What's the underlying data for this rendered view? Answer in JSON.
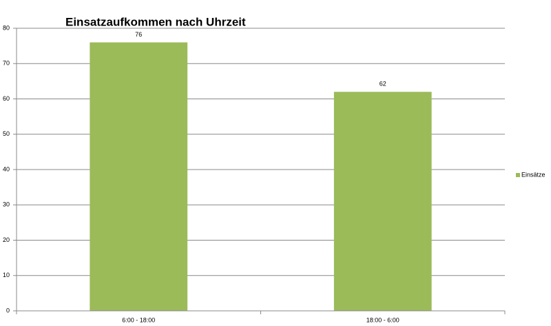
{
  "chart_data": {
    "type": "bar",
    "title": "Einsatzaufkommen nach Uhrzeit",
    "categories": [
      "6:00 - 18:00",
      "18:00 - 6:00"
    ],
    "series": [
      {
        "name": "Einsätze",
        "color": "#9bbb59",
        "values": [
          76,
          62
        ]
      }
    ],
    "ylim": [
      0,
      80
    ],
    "yticks": [
      0,
      10,
      20,
      30,
      40,
      50,
      60,
      70,
      80
    ],
    "grid": true,
    "legend": "right",
    "data_labels": true
  }
}
